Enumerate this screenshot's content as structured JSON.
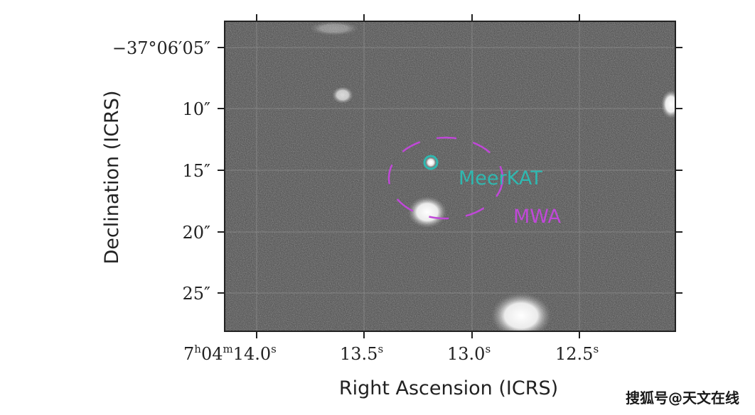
{
  "figure": {
    "ylabel": "Declination (ICRS)",
    "xlabel": "Right Ascension (ICRS)",
    "y_ticks": [
      {
        "text": "−37°06′05″"
      },
      {
        "text": "10″"
      },
      {
        "text": "15″"
      },
      {
        "text": "20″"
      },
      {
        "text": "25″"
      }
    ],
    "x_ticks": {
      "first": {
        "main": "7",
        "h": "h",
        "mid": "04",
        "m": "m",
        "sec": "14.0",
        "s": "s"
      },
      "rest": [
        {
          "main": "13.5",
          "s": "s"
        },
        {
          "main": "13.0",
          "s": "s"
        },
        {
          "main": "12.5",
          "s": "s"
        }
      ]
    },
    "annotations": [
      {
        "text": "MeerKAT",
        "color": "#2fb8b0"
      },
      {
        "text": "MWA",
        "color": "#c048d8"
      }
    ]
  },
  "watermark": "搜狐号@天文在线"
}
